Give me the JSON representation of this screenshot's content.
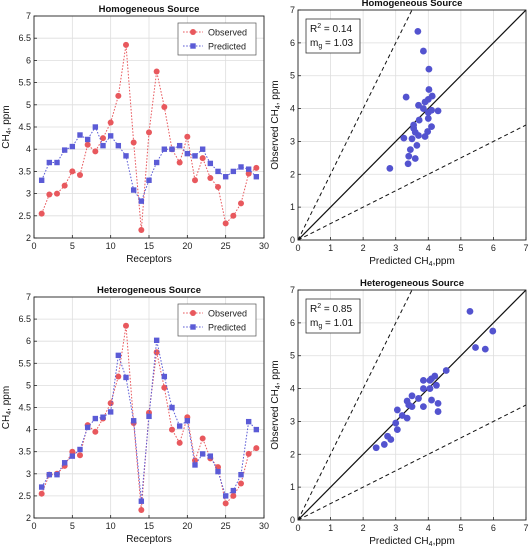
{
  "colors": {
    "observed": "#e8585d",
    "predicted": "#5b5bd6",
    "scatter": "#5353cf",
    "axis": "#222222",
    "grid": "#dedede"
  },
  "chart_data": [
    {
      "id": "homo-line",
      "type": "line",
      "title": "Homogeneous Source",
      "xlabel": "Receptors",
      "ylabel": "CH",
      "ylabel_sub": "4",
      "ylabel_tail": ", ppm",
      "xlim": [
        0,
        30
      ],
      "ylim": [
        2,
        7
      ],
      "xticks": [
        0,
        5,
        10,
        15,
        20,
        25,
        30
      ],
      "yticks": [
        2,
        2.5,
        3,
        3.5,
        4,
        4.5,
        5,
        5.5,
        6,
        6.5,
        7
      ],
      "ytick_labels": [
        "2",
        "2.5",
        "3",
        "3.5",
        "4",
        "4.5",
        "5",
        "5.5",
        "6",
        "6.5",
        "7"
      ],
      "grid": true,
      "legend": "top-right",
      "x": [
        1,
        2,
        3,
        4,
        5,
        6,
        7,
        8,
        9,
        10,
        11,
        12,
        13,
        14,
        15,
        16,
        17,
        18,
        19,
        20,
        21,
        22,
        23,
        24,
        25,
        26,
        27,
        28,
        29
      ],
      "series": [
        {
          "name": "Observed",
          "marker": "circle",
          "color": "#e8585d",
          "values": [
            2.55,
            2.98,
            3.0,
            3.18,
            3.5,
            3.42,
            4.1,
            3.95,
            4.25,
            4.6,
            5.2,
            6.35,
            4.15,
            2.18,
            4.38,
            5.75,
            4.95,
            4.0,
            3.7,
            4.28,
            3.3,
            3.8,
            3.35,
            3.15,
            2.33,
            2.5,
            2.78,
            3.45,
            3.58
          ]
        },
        {
          "name": "Predicted",
          "marker": "square",
          "color": "#5b5bd6",
          "values": [
            3.3,
            3.7,
            3.7,
            3.98,
            4.06,
            4.32,
            4.22,
            4.5,
            4.08,
            4.3,
            4.08,
            3.85,
            3.08,
            2.83,
            3.3,
            3.7,
            4.0,
            4.0,
            4.08,
            3.9,
            3.85,
            4.0,
            3.68,
            3.5,
            3.38,
            3.5,
            3.6,
            3.55,
            3.38
          ]
        }
      ]
    },
    {
      "id": "homo-scatter",
      "type": "scatter",
      "title": "Homogeneous Source",
      "xlabel": "Predicted CH",
      "xlabel_sub": "4",
      "xlabel_tail": ",ppm",
      "ylabel": "Observed CH",
      "ylabel_sub": "4",
      "ylabel_tail": ", ppm",
      "xlim": [
        0,
        7
      ],
      "ylim": [
        0,
        7
      ],
      "xticks": [
        0,
        1,
        2,
        3,
        4,
        5,
        6,
        7
      ],
      "yticks": [
        0,
        1,
        2,
        3,
        4,
        5,
        6,
        7
      ],
      "grid": true,
      "stats": [
        {
          "label": "R",
          "sup": "2",
          "value": " = 0.14"
        },
        {
          "label": "m",
          "sub": "g",
          "value": " = 1.03"
        }
      ],
      "reference_lines": [
        {
          "style": "solid",
          "slope": 1
        },
        {
          "style": "dashed",
          "slope": 2
        },
        {
          "style": "dashed",
          "slope": 0.5
        }
      ],
      "points": [
        [
          3.25,
          3.1
        ],
        [
          3.5,
          3.08
        ],
        [
          3.72,
          3.65
        ],
        [
          3.32,
          4.35
        ],
        [
          3.9,
          4.2
        ],
        [
          4.0,
          4.28
        ],
        [
          4.02,
          4.58
        ],
        [
          3.85,
          5.75
        ],
        [
          4.02,
          5.2
        ],
        [
          3.68,
          6.35
        ],
        [
          4.12,
          4.38
        ],
        [
          3.7,
          4.1
        ],
        [
          3.85,
          4.0
        ],
        [
          4.0,
          3.88
        ],
        [
          4.1,
          3.95
        ],
        [
          3.55,
          3.4
        ],
        [
          4.3,
          3.93
        ],
        [
          4.0,
          3.7
        ],
        [
          3.6,
          3.28
        ],
        [
          3.55,
          3.5
        ],
        [
          3.98,
          3.3
        ],
        [
          4.1,
          3.45
        ],
        [
          3.7,
          3.18
        ],
        [
          3.65,
          2.88
        ],
        [
          3.4,
          2.55
        ],
        [
          3.38,
          2.32
        ],
        [
          3.6,
          2.48
        ],
        [
          2.82,
          2.18
        ],
        [
          3.45,
          2.75
        ],
        [
          3.9,
          3.15
        ]
      ]
    },
    {
      "id": "hetero-line",
      "type": "line",
      "title": "Heterogeneous Source",
      "xlabel": "Receptors",
      "ylabel": "CH",
      "ylabel_sub": "4",
      "ylabel_tail": ", ppm",
      "xlim": [
        0,
        30
      ],
      "ylim": [
        2,
        7
      ],
      "xticks": [
        0,
        5,
        10,
        15,
        20,
        25,
        30
      ],
      "yticks": [
        2,
        2.5,
        3,
        3.5,
        4,
        4.5,
        5,
        5.5,
        6,
        6.5,
        7
      ],
      "ytick_labels": [
        "2",
        "2.5",
        "3",
        "3.5",
        "4",
        "4.5",
        "5",
        "5.5",
        "6",
        "6.5",
        "7"
      ],
      "grid": true,
      "legend": "top-right",
      "x": [
        1,
        2,
        3,
        4,
        5,
        6,
        7,
        8,
        9,
        10,
        11,
        12,
        13,
        14,
        15,
        16,
        17,
        18,
        19,
        20,
        21,
        22,
        23,
        24,
        25,
        26,
        27,
        28,
        29
      ],
      "series": [
        {
          "name": "Observed",
          "marker": "circle",
          "color": "#e8585d",
          "values": [
            2.55,
            2.98,
            3.0,
            3.18,
            3.5,
            3.42,
            4.1,
            3.95,
            4.25,
            4.6,
            5.2,
            6.35,
            4.15,
            2.18,
            4.38,
            5.75,
            4.95,
            4.0,
            3.7,
            4.28,
            3.3,
            3.8,
            3.35,
            3.15,
            2.33,
            2.5,
            2.78,
            3.45,
            3.58
          ]
        },
        {
          "name": "Predicted",
          "marker": "square",
          "color": "#5b5bd6",
          "values": [
            2.7,
            2.98,
            2.98,
            3.25,
            3.4,
            3.55,
            4.05,
            4.25,
            4.28,
            4.4,
            5.68,
            5.18,
            4.2,
            2.38,
            4.3,
            6.02,
            5.2,
            4.5,
            4.08,
            4.2,
            3.2,
            3.45,
            3.4,
            3.05,
            2.5,
            2.62,
            2.98,
            4.18,
            4.0
          ]
        }
      ]
    },
    {
      "id": "hetero-scatter",
      "type": "scatter",
      "title": "Heterogeneous Source",
      "xlabel": "Predicted CH",
      "xlabel_sub": "4",
      "xlabel_tail": ",ppm",
      "ylabel": "Observed CH",
      "ylabel_sub": "4",
      "ylabel_tail": ", ppm",
      "xlim": [
        0,
        7
      ],
      "ylim": [
        0,
        7
      ],
      "xticks": [
        0,
        1,
        2,
        3,
        4,
        5,
        6,
        7
      ],
      "yticks": [
        0,
        1,
        2,
        3,
        4,
        5,
        6,
        7
      ],
      "grid": true,
      "stats": [
        {
          "label": "R",
          "sup": "2",
          "value": " = 0.85"
        },
        {
          "label": "m",
          "sub": "g",
          "value": " = 1.01"
        }
      ],
      "reference_lines": [
        {
          "style": "solid",
          "slope": 1
        },
        {
          "style": "dashed",
          "slope": 2
        },
        {
          "style": "dashed",
          "slope": 0.5
        }
      ],
      "points": [
        [
          2.4,
          2.2
        ],
        [
          2.65,
          2.3
        ],
        [
          2.75,
          2.55
        ],
        [
          2.85,
          2.45
        ],
        [
          3.0,
          2.95
        ],
        [
          3.05,
          2.75
        ],
        [
          3.05,
          3.35
        ],
        [
          3.2,
          3.18
        ],
        [
          3.35,
          3.1
        ],
        [
          3.4,
          3.5
        ],
        [
          3.35,
          3.62
        ],
        [
          3.5,
          3.45
        ],
        [
          3.5,
          3.78
        ],
        [
          3.7,
          3.7
        ],
        [
          3.85,
          3.45
        ],
        [
          3.85,
          4.0
        ],
        [
          4.05,
          4.0
        ],
        [
          4.1,
          4.3
        ],
        [
          4.2,
          4.38
        ],
        [
          4.1,
          3.65
        ],
        [
          4.25,
          4.1
        ],
        [
          4.3,
          3.55
        ],
        [
          4.05,
          4.25
        ],
        [
          4.3,
          3.3
        ],
        [
          4.55,
          4.55
        ],
        [
          5.28,
          6.35
        ],
        [
          5.45,
          5.25
        ],
        [
          5.75,
          5.2
        ],
        [
          5.98,
          5.75
        ],
        [
          3.85,
          4.25
        ]
      ]
    }
  ]
}
